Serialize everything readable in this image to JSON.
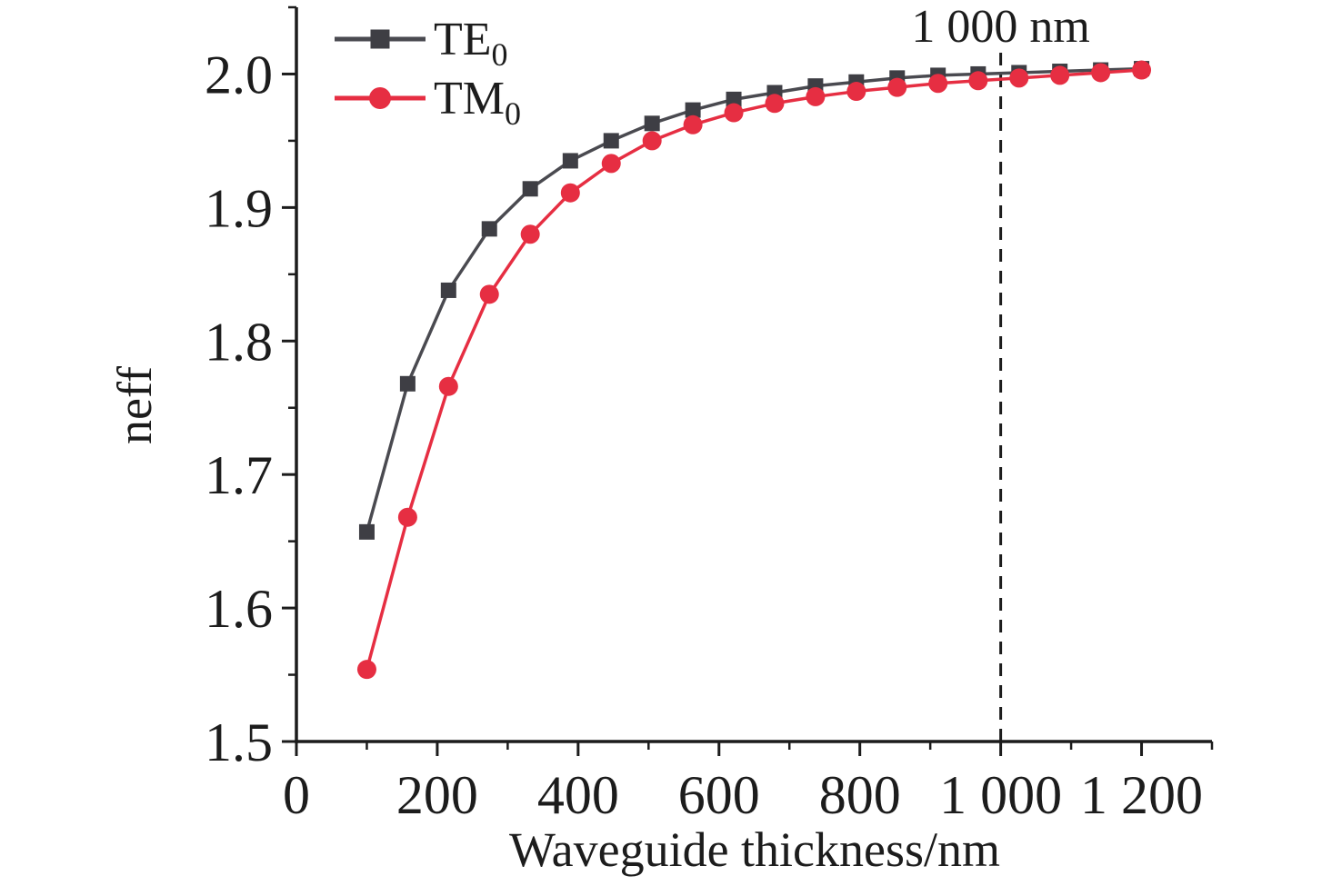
{
  "figure": {
    "background": "#ffffff",
    "text_color": "#1c1c1c",
    "axis_color": "#1c1c1c"
  },
  "chart_data": {
    "type": "line",
    "title": "",
    "xlabel": "Waveguide thickness/nm",
    "ylabel": "neff",
    "xlim": [
      0,
      1300
    ],
    "ylim": [
      1.5,
      2.05
    ],
    "grid": false,
    "x_ticks": {
      "major": [
        0,
        200,
        400,
        600,
        800,
        1000,
        1200
      ],
      "labels": [
        "0",
        "200",
        "400",
        "600",
        "800",
        "1 000",
        "1 200"
      ],
      "minor": [
        100,
        300,
        500,
        700,
        900,
        1100,
        1300
      ]
    },
    "y_ticks": {
      "major": [
        1.5,
        1.6,
        1.7,
        1.8,
        1.9,
        2.0
      ],
      "labels": [
        "1.5",
        "1.6",
        "1.7",
        "1.8",
        "1.9",
        "2.0"
      ],
      "minor": [
        1.55,
        1.65,
        1.75,
        1.85,
        1.95,
        2.05
      ]
    },
    "x": [
      100,
      158,
      216,
      274,
      332,
      389,
      447,
      505,
      563,
      621,
      679,
      737,
      795,
      853,
      911,
      968,
      1026,
      1084,
      1142,
      1200
    ],
    "series": [
      {
        "name": "TE0",
        "legend_main": "TE",
        "legend_sub": "0",
        "color": "#4a4a50",
        "marker": "square",
        "marker_color": "#3e3e44",
        "values": [
          1.657,
          1.768,
          1.838,
          1.884,
          1.914,
          1.935,
          1.95,
          1.963,
          1.973,
          1.981,
          1.986,
          1.991,
          1.994,
          1.997,
          1.999,
          2.0,
          2.001,
          2.002,
          2.003,
          2.004
        ]
      },
      {
        "name": "TM0",
        "legend_main": "TM",
        "legend_sub": "0",
        "color": "#e62e42",
        "marker": "circle",
        "marker_color": "#e62e42",
        "values": [
          1.554,
          1.668,
          1.766,
          1.835,
          1.88,
          1.911,
          1.933,
          1.95,
          1.962,
          1.971,
          1.978,
          1.983,
          1.987,
          1.99,
          1.993,
          1.995,
          1.997,
          1.999,
          2.001,
          2.003
        ]
      }
    ],
    "legend": {
      "position": "top-left"
    },
    "annotation": {
      "text": "1 000 nm",
      "x_value": 1000,
      "line_style": "dashed"
    }
  }
}
